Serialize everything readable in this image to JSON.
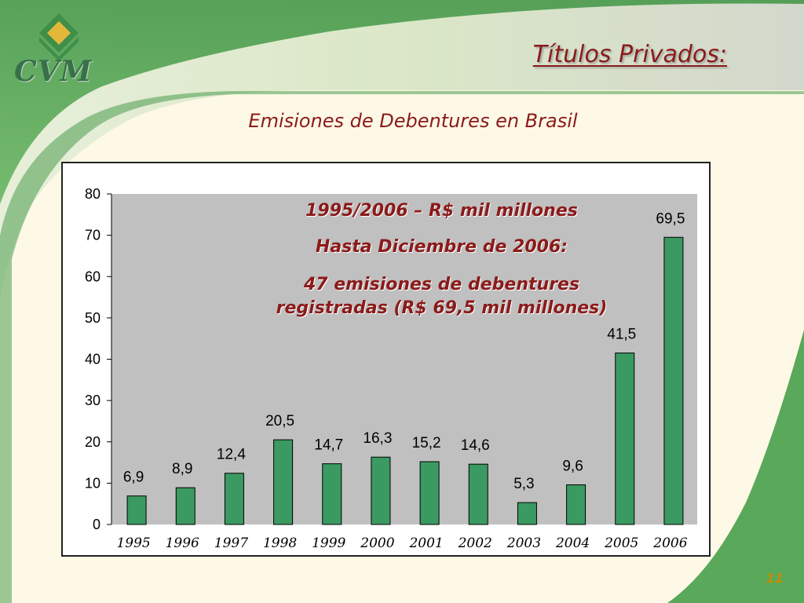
{
  "logo": {
    "text": "CVM",
    "icon": "cvm-diamond-logo-icon"
  },
  "slide_title": "Títulos Privados:",
  "subtitle": "Emisiones de Debentures en Brasil",
  "annotation": {
    "line1": "1995/2006 – R$ mil millones",
    "line2": "Hasta Diciembre de 2006:",
    "line3": "47 emisiones de debentures",
    "line4": "registradas (R$ 69,5 mil millones)"
  },
  "page_number": "11",
  "colors": {
    "bar": "#3a9a62",
    "plot_area": "#c0c0c0",
    "title": "#8b1a1a",
    "green_swoosh": "#5aa85a"
  },
  "chart_data": {
    "type": "bar",
    "categories": [
      "1995",
      "1996",
      "1997",
      "1998",
      "1999",
      "2000",
      "2001",
      "2002",
      "2003",
      "2004",
      "2005",
      "2006"
    ],
    "values": [
      6.9,
      8.9,
      12.4,
      20.5,
      14.7,
      16.3,
      15.2,
      14.6,
      5.3,
      9.6,
      41.5,
      69.5
    ],
    "value_labels": [
      "6,9",
      "8,9",
      "12,4",
      "20,5",
      "14,7",
      "16,3",
      "15,2",
      "14,6",
      "5,3",
      "9,6",
      "41,5",
      "69,5"
    ],
    "y_ticks": [
      "0",
      "10",
      "20",
      "30",
      "40",
      "50",
      "60",
      "70",
      "80"
    ],
    "ylim": [
      0,
      80
    ],
    "title": "",
    "xlabel": "",
    "ylabel": "",
    "grid": false
  }
}
